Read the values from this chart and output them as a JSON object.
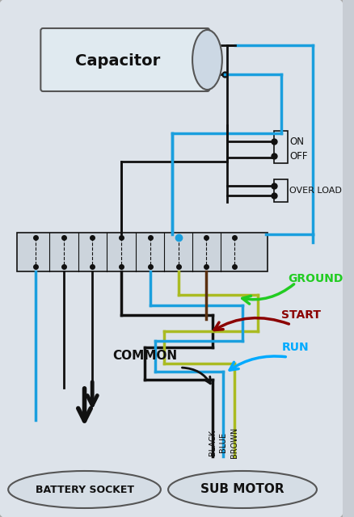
{
  "bg_color": "#c8cdd4",
  "panel_color": "#dde3ea",
  "fig_width": 4.38,
  "fig_height": 6.4,
  "capacitor_label": "Capacitor",
  "battery_socket_label": "BATTERY SOCKET",
  "sub_motor_label": "SUB MOTOR",
  "on_label": "ON",
  "off_label": "OFF",
  "overload_label": "OVER LOAD",
  "ground_label": "GROUND",
  "start_label": "START",
  "run_label": "RUN",
  "common_label": "COMMON",
  "black_label": "BLACK",
  "blue_label": "BLUE",
  "brown_label": "BROWN",
  "wire_black": "#111111",
  "wire_blue": "#1a9fde",
  "wire_yellow_green": "#aabb22",
  "wire_brown": "#6b3a1f",
  "color_ground": "#22cc22",
  "color_start": "#8B0000",
  "color_run": "#00aaff",
  "color_common": "#111111"
}
